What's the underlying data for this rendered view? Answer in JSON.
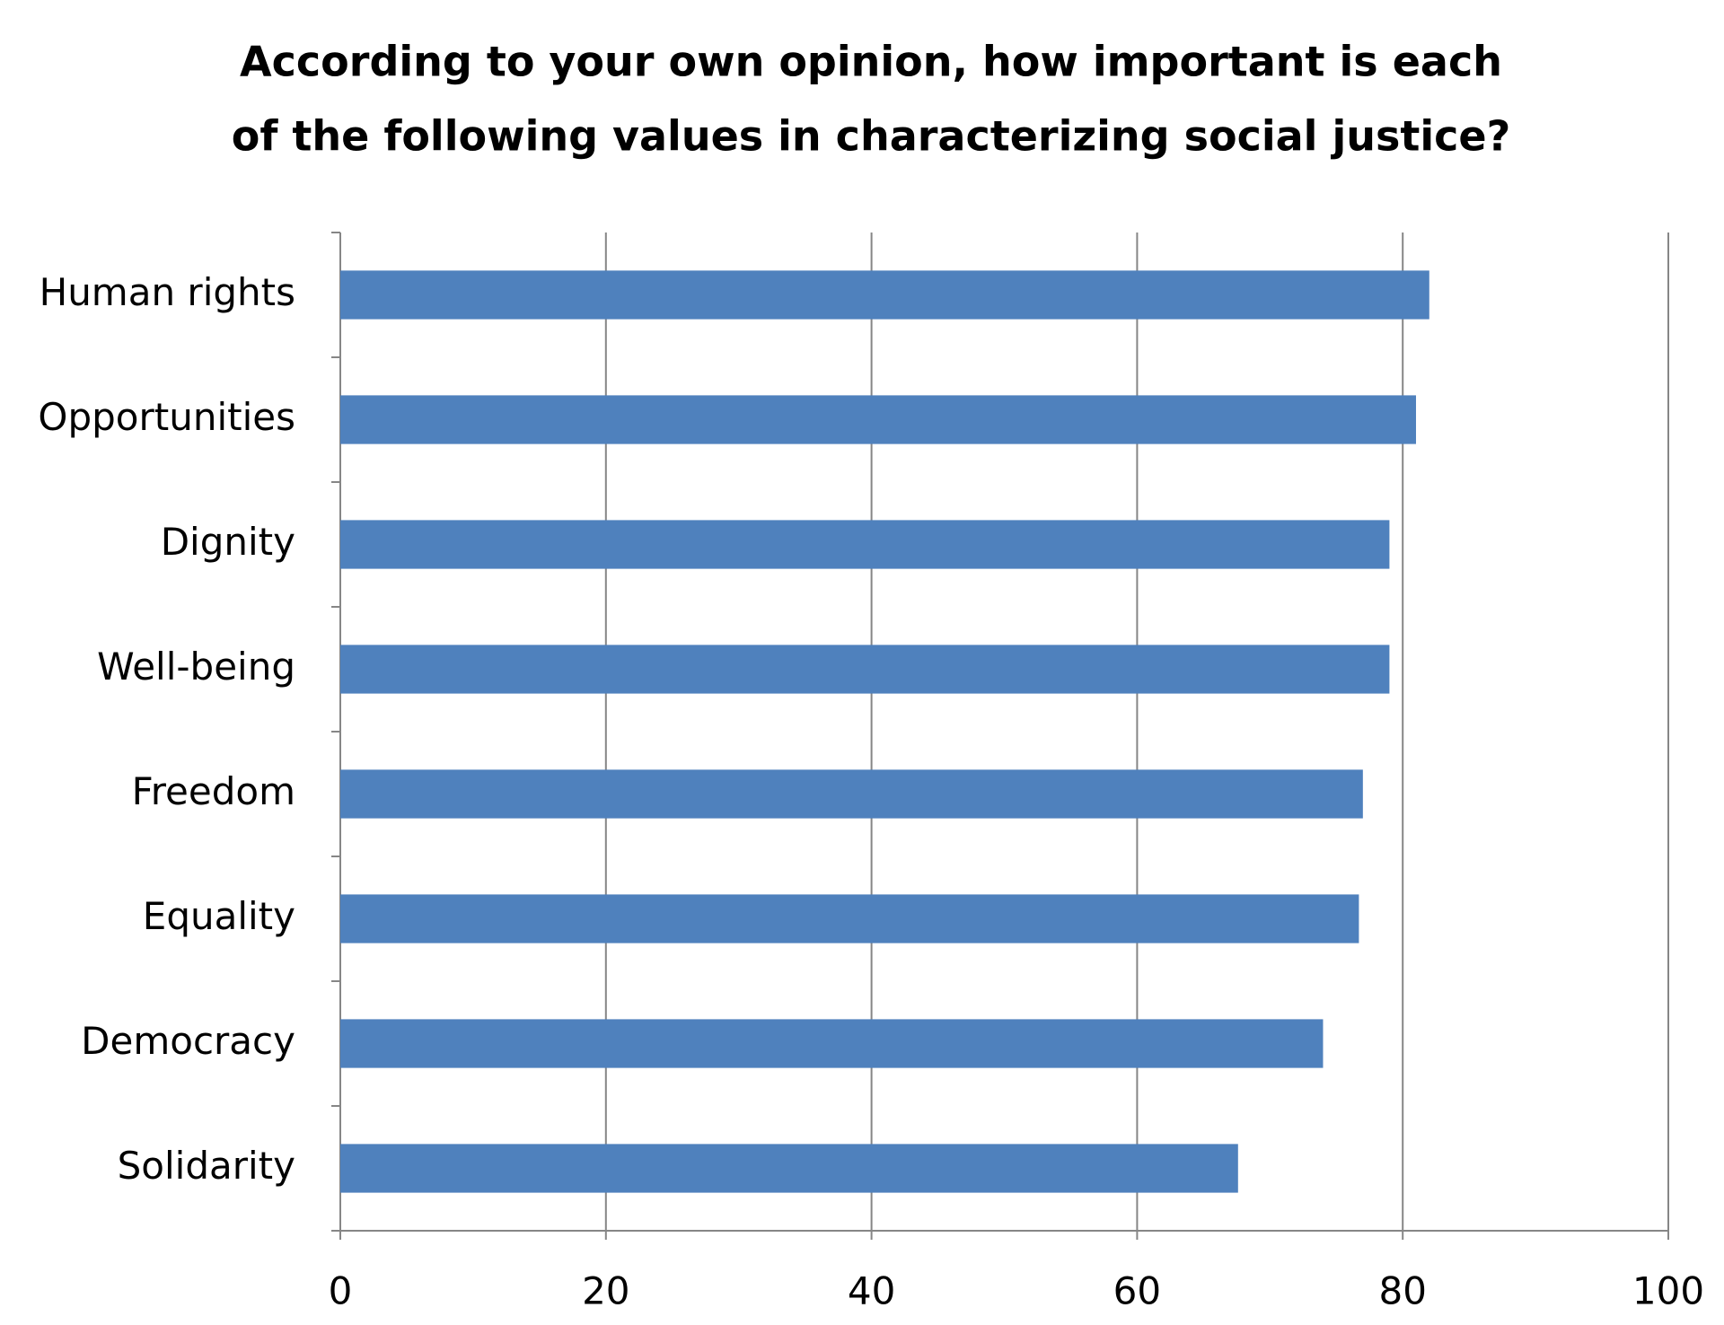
{
  "chart_data": {
    "type": "barh",
    "title": [
      "According to your own opinion, how important is each",
      "of the following values in characterizing social justice?"
    ],
    "categories": [
      "Human rights",
      "Opportunities",
      "Dignity",
      "Well-being",
      "Freedom",
      "Equality",
      "Democracy",
      "Solidarity"
    ],
    "values": [
      82,
      81,
      79,
      79,
      77,
      76.7,
      74,
      67.6
    ],
    "color": "#4f81bd",
    "xlim": [
      0,
      100
    ],
    "xticks": [
      0,
      20,
      40,
      60,
      80,
      100
    ],
    "grid": true
  }
}
